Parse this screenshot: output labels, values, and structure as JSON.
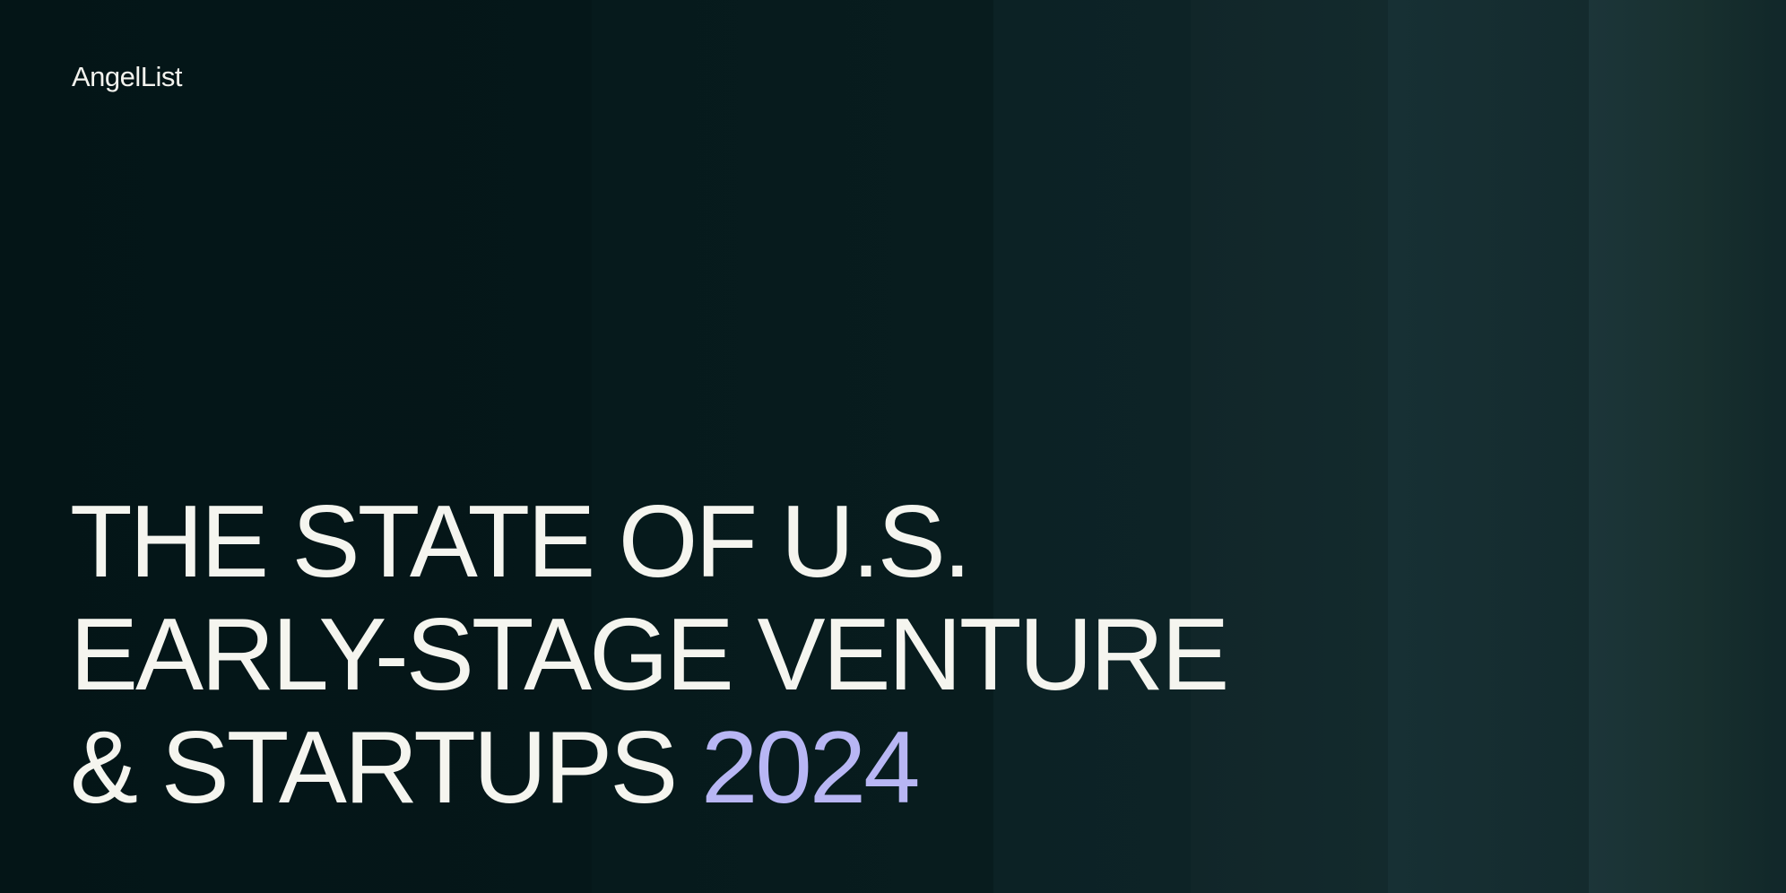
{
  "brand": {
    "logo_text": "AngelList"
  },
  "headline": {
    "line1": "THE STATE OF U.S.",
    "line2": "EARLY-STAGE VENTURE",
    "line3": "& STARTUPS",
    "year": "2024"
  },
  "colors": {
    "background": "#041517",
    "text": "#f5f5ef",
    "accent": "#b8b6f4"
  }
}
